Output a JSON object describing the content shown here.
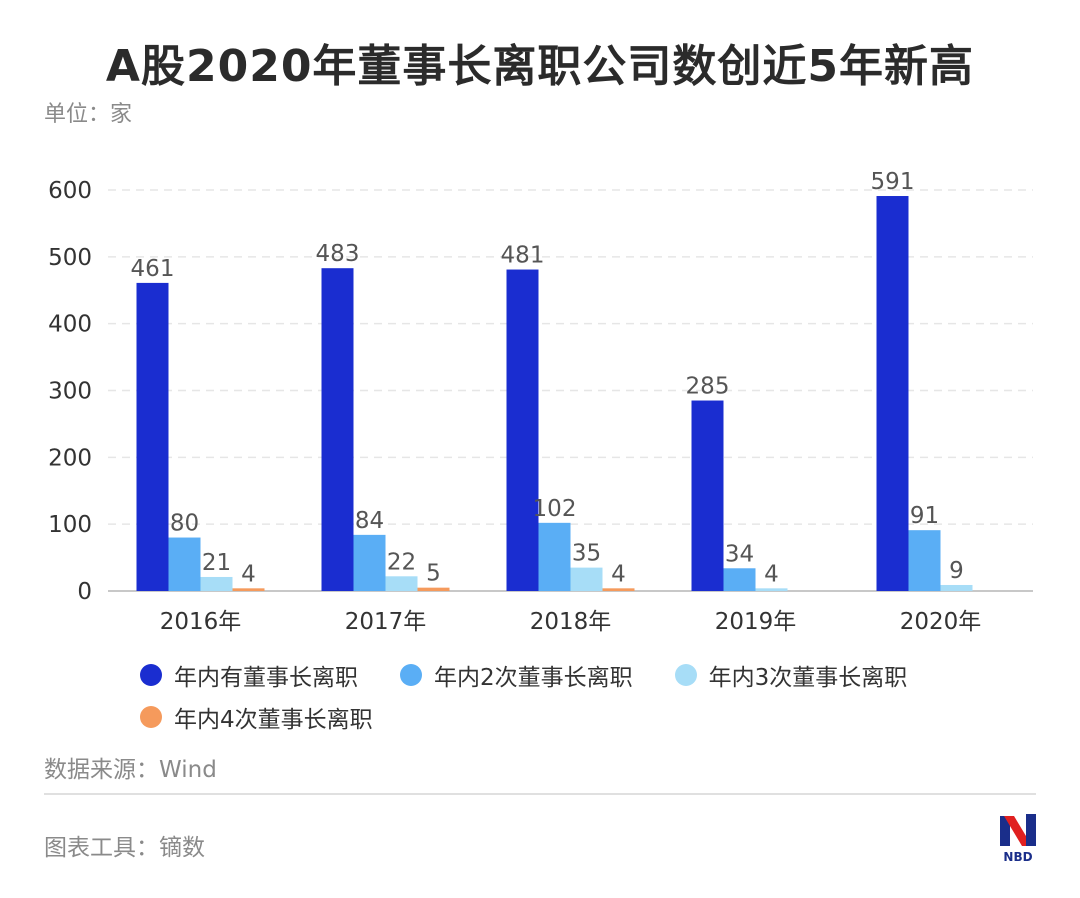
{
  "title": "A股2020年董事长离职公司数创近5年新高",
  "unit_label": "单位：家",
  "source_label": "数据来源：Wind",
  "tool_label": "图表工具：镝数",
  "logo_text": "NBD",
  "colors": {
    "series1": "#1a2dd0",
    "series2": "#5aaef5",
    "series3": "#a7ddf7",
    "series4": "#f59a5c",
    "grid": "#e6e6e6",
    "axis": "#c8c8c8",
    "text": "#333333",
    "muted": "#8a8a8a",
    "logo_red": "#e02020",
    "logo_blue": "#1a2e8a"
  },
  "chart_data": {
    "type": "bar",
    "title": "A股2020年董事长离职公司数创近5年新高",
    "categories": [
      "2016年",
      "2017年",
      "2018年",
      "2019年",
      "2020年"
    ],
    "ylim": [
      0,
      600
    ],
    "yticks": [
      0,
      100,
      200,
      300,
      400,
      500,
      600
    ],
    "grid": true,
    "legend_position": "bottom",
    "series": [
      {
        "name": "年内有董事长离职",
        "values": [
          461,
          483,
          481,
          285,
          591
        ]
      },
      {
        "name": "年内2次董事长离职",
        "values": [
          80,
          84,
          102,
          34,
          91
        ]
      },
      {
        "name": "年内3次董事长离职",
        "values": [
          21,
          22,
          35,
          4,
          9
        ]
      },
      {
        "name": "年内4次董事长离职",
        "values": [
          4,
          5,
          4,
          null,
          null
        ]
      }
    ]
  }
}
